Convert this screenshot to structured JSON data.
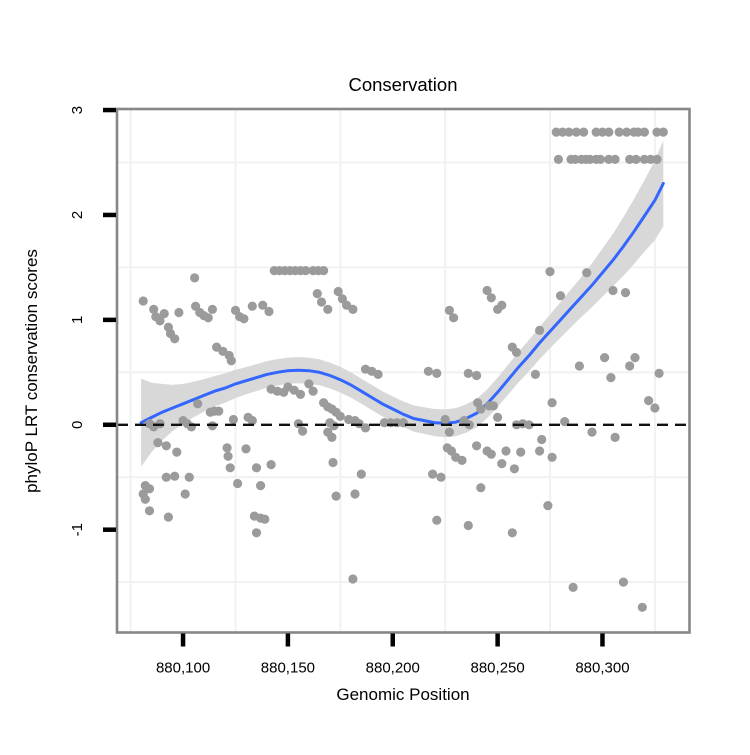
{
  "chart_data": {
    "type": "scatter",
    "title": "Conservation",
    "xlabel": "Genomic Position",
    "ylabel": "phyloP LRT conservation scores",
    "legend": "none",
    "x_ticks": {
      "values": [
        880100,
        880150,
        880200,
        880250,
        880300
      ],
      "labels": [
        "880,100",
        "880,150",
        "880,200",
        "880,250",
        "880,300"
      ]
    },
    "y_ticks": {
      "values": [
        -1,
        0,
        1,
        2,
        3
      ],
      "labels": [
        "-1",
        "0",
        "1",
        "2",
        "3"
      ]
    },
    "x_range": [
      880068.5,
      880341.5
    ],
    "y_range": [
      -1.98,
      3.01
    ],
    "grid": {
      "show": true,
      "x_lines": [
        880075,
        880125,
        880175,
        880225,
        880275,
        880325
      ],
      "y_lines": [
        -1.5,
        -0.5,
        0.5,
        1.5,
        2.5
      ]
    },
    "reference_line": {
      "y": 0,
      "style": "dashed"
    },
    "colors": {
      "point": "#9b9b9b",
      "smooth_line": "#3366ff",
      "ribbon": "#d8d8d8",
      "panel_border": "#878787",
      "grid_line": "#f1f1f1",
      "tick": "#000000",
      "reference": "#111111",
      "background": "#ffffff"
    },
    "smooth": {
      "x": [
        880080,
        880085,
        880090,
        880095,
        880100,
        880105,
        880110,
        880115,
        880120,
        880125,
        880130,
        880135,
        880140,
        880145,
        880150,
        880155,
        880160,
        880165,
        880170,
        880175,
        880180,
        880185,
        880190,
        880195,
        880200,
        880205,
        880210,
        880215,
        880220,
        880225,
        880230,
        880235,
        880240,
        880245,
        880250,
        880255,
        880260,
        880265,
        880270,
        880275,
        880280,
        880285,
        880290,
        880295,
        880300,
        880305,
        880310,
        880315,
        880320,
        880325,
        880329
      ],
      "y": [
        0.02,
        0.07,
        0.12,
        0.16,
        0.2,
        0.24,
        0.28,
        0.32,
        0.35,
        0.39,
        0.42,
        0.45,
        0.48,
        0.5,
        0.515,
        0.52,
        0.515,
        0.5,
        0.47,
        0.43,
        0.38,
        0.32,
        0.26,
        0.2,
        0.15,
        0.1,
        0.06,
        0.04,
        0.02,
        0.015,
        0.025,
        0.06,
        0.11,
        0.2,
        0.31,
        0.43,
        0.55,
        0.66,
        0.78,
        0.89,
        1.0,
        1.11,
        1.22,
        1.33,
        1.45,
        1.57,
        1.7,
        1.84,
        1.99,
        2.14,
        2.3
      ],
      "half_width": [
        0.42,
        0.33,
        0.27,
        0.22,
        0.19,
        0.17,
        0.155,
        0.145,
        0.14,
        0.135,
        0.13,
        0.128,
        0.127,
        0.126,
        0.125,
        0.125,
        0.125,
        0.124,
        0.123,
        0.122,
        0.12,
        0.12,
        0.12,
        0.12,
        0.12,
        0.122,
        0.125,
        0.127,
        0.13,
        0.132,
        0.134,
        0.135,
        0.136,
        0.137,
        0.14,
        0.142,
        0.145,
        0.15,
        0.155,
        0.16,
        0.17,
        0.18,
        0.19,
        0.21,
        0.23,
        0.25,
        0.28,
        0.31,
        0.34,
        0.38,
        0.41
      ]
    },
    "points": [
      [
        880278,
        2.79
      ],
      [
        880281,
        2.79
      ],
      [
        880284,
        2.79
      ],
      [
        880287.5,
        2.79
      ],
      [
        880291,
        2.79
      ],
      [
        880297,
        2.79
      ],
      [
        880300,
        2.79
      ],
      [
        880303,
        2.79
      ],
      [
        880308,
        2.79
      ],
      [
        880311.5,
        2.79
      ],
      [
        880315,
        2.79
      ],
      [
        880317,
        2.79
      ],
      [
        880320,
        2.79
      ],
      [
        880326,
        2.79
      ],
      [
        880329,
        2.79
      ],
      [
        880279,
        2.53
      ],
      [
        880285,
        2.53
      ],
      [
        880287,
        2.53
      ],
      [
        880290,
        2.53
      ],
      [
        880292,
        2.53
      ],
      [
        880294,
        2.53
      ],
      [
        880297,
        2.53
      ],
      [
        880299,
        2.53
      ],
      [
        880303,
        2.53
      ],
      [
        880306,
        2.53
      ],
      [
        880313,
        2.53
      ],
      [
        880316,
        2.53
      ],
      [
        880320,
        2.53
      ],
      [
        880323,
        2.53
      ],
      [
        880326,
        2.53
      ],
      [
        880143.5,
        1.47
      ],
      [
        880146,
        1.47
      ],
      [
        880148.5,
        1.47
      ],
      [
        880151,
        1.47
      ],
      [
        880153.5,
        1.47
      ],
      [
        880156,
        1.47
      ],
      [
        880158.5,
        1.47
      ],
      [
        880162,
        1.47
      ],
      [
        880164.5,
        1.47
      ],
      [
        880167,
        1.47
      ],
      [
        880105.5,
        1.4
      ],
      [
        880275,
        1.46
      ],
      [
        880292.5,
        1.45
      ],
      [
        880081,
        1.18
      ],
      [
        880086,
        1.1
      ],
      [
        880087,
        1.03
      ],
      [
        880089,
        0.99
      ],
      [
        880091,
        1.06
      ],
      [
        880098,
        1.07
      ],
      [
        880106,
        1.13
      ],
      [
        880108,
        1.07
      ],
      [
        880110,
        1.04
      ],
      [
        880112,
        1.02
      ],
      [
        880114,
        1.1
      ],
      [
        880125,
        1.09
      ],
      [
        880127,
        1.03
      ],
      [
        880129,
        1.01
      ],
      [
        880133,
        1.13
      ],
      [
        880138,
        1.14
      ],
      [
        880141,
        1.08
      ],
      [
        880093,
        0.93
      ],
      [
        880094,
        0.87
      ],
      [
        880096,
        0.82
      ],
      [
        880164,
        1.25
      ],
      [
        880166,
        1.17
      ],
      [
        880169,
        1.1
      ],
      [
        880174,
        1.27
      ],
      [
        880176,
        1.2
      ],
      [
        880178,
        1.14
      ],
      [
        880181,
        1.1
      ],
      [
        880227,
        1.09
      ],
      [
        880229,
        1.02
      ],
      [
        880245,
        1.28
      ],
      [
        880247,
        1.21
      ],
      [
        880250,
        1.1
      ],
      [
        880252,
        1.14
      ],
      [
        880280,
        1.23
      ],
      [
        880305,
        1.28
      ],
      [
        880311,
        1.26
      ],
      [
        880116,
        0.74
      ],
      [
        880119,
        0.7
      ],
      [
        880122,
        0.66
      ],
      [
        880123,
        0.61
      ],
      [
        880270,
        0.9
      ],
      [
        880257,
        0.74
      ],
      [
        880259,
        0.69
      ],
      [
        880301,
        0.64
      ],
      [
        880315.5,
        0.64
      ],
      [
        880187,
        0.53
      ],
      [
        880190,
        0.51
      ],
      [
        880193,
        0.48
      ],
      [
        880217,
        0.51
      ],
      [
        880221,
        0.49
      ],
      [
        880236,
        0.49
      ],
      [
        880240,
        0.47
      ],
      [
        880268,
        0.48
      ],
      [
        880289,
        0.56
      ],
      [
        880304,
        0.45
      ],
      [
        880313,
        0.56
      ],
      [
        880327,
        0.49
      ],
      [
        880142,
        0.34
      ],
      [
        880145,
        0.32
      ],
      [
        880148,
        0.31
      ],
      [
        880150,
        0.36
      ],
      [
        880153,
        0.33
      ],
      [
        880156,
        0.29
      ],
      [
        880160,
        0.39
      ],
      [
        880162,
        0.32
      ],
      [
        880167,
        0.21
      ],
      [
        880169,
        0.17
      ],
      [
        880276,
        0.21
      ],
      [
        880240.5,
        0.21
      ],
      [
        880242,
        0.15
      ],
      [
        880246,
        0.18
      ],
      [
        880322,
        0.23
      ],
      [
        880325,
        0.16
      ],
      [
        880084,
        0.01
      ],
      [
        880086,
        -0.02
      ],
      [
        880089,
        0.01
      ],
      [
        880100,
        0.04
      ],
      [
        880102,
        0.01
      ],
      [
        880104,
        -0.02
      ],
      [
        880107,
        0.2
      ],
      [
        880113,
        0.12
      ],
      [
        880115,
        0.13
      ],
      [
        880117,
        0.13
      ],
      [
        880114,
        -0.01
      ],
      [
        880124,
        0.05
      ],
      [
        880131,
        0.07
      ],
      [
        880133,
        0.04
      ],
      [
        880155,
        0.01
      ],
      [
        880157,
        -0.06
      ],
      [
        880171,
        0.15
      ],
      [
        880173,
        0.12
      ],
      [
        880175,
        0.08
      ],
      [
        880179,
        0.05
      ],
      [
        880170,
        0.02
      ],
      [
        880172,
        -0.01
      ],
      [
        880182,
        0.04
      ],
      [
        880184,
        0.01
      ],
      [
        880187,
        -0.03
      ],
      [
        880196,
        0.02
      ],
      [
        880199,
        0.02
      ],
      [
        880202,
        0.02
      ],
      [
        880205,
        0.02
      ],
      [
        880225,
        0.05
      ],
      [
        880227,
        -0.07
      ],
      [
        880234,
        0.04
      ],
      [
        880236.5,
        0.0
      ],
      [
        880248,
        0.18
      ],
      [
        880250,
        0.07
      ],
      [
        880259,
        0.0
      ],
      [
        880262,
        0.01
      ],
      [
        880265,
        0.0
      ],
      [
        880282,
        0.03
      ],
      [
        880295,
        -0.07
      ],
      [
        880306,
        -0.12
      ],
      [
        880169,
        -0.07
      ],
      [
        880171,
        -0.12
      ],
      [
        880088,
        -0.17
      ],
      [
        880092,
        -0.2
      ],
      [
        880097,
        -0.26
      ],
      [
        880121,
        -0.22
      ],
      [
        880121.5,
        -0.3
      ],
      [
        880122.5,
        -0.41
      ],
      [
        880130,
        -0.23
      ],
      [
        880135,
        -0.41
      ],
      [
        880142,
        -0.38
      ],
      [
        880171.5,
        -0.36
      ],
      [
        880219,
        -0.47
      ],
      [
        880223,
        -0.5
      ],
      [
        880226,
        -0.22
      ],
      [
        880228,
        -0.25
      ],
      [
        880230,
        -0.31
      ],
      [
        880233,
        -0.34
      ],
      [
        880240,
        -0.2
      ],
      [
        880245,
        -0.25
      ],
      [
        880247,
        -0.28
      ],
      [
        880254,
        -0.25
      ],
      [
        880261,
        -0.26
      ],
      [
        880252,
        -0.37
      ],
      [
        880258,
        -0.42
      ],
      [
        880271,
        -0.14
      ],
      [
        880270,
        -0.25
      ],
      [
        880276,
        -0.31
      ],
      [
        880092,
        -0.5
      ],
      [
        880096,
        -0.49
      ],
      [
        880103,
        -0.5
      ],
      [
        880082,
        -0.58
      ],
      [
        880084,
        -0.61
      ],
      [
        880081,
        -0.66
      ],
      [
        880082,
        -0.71
      ],
      [
        880101,
        -0.66
      ],
      [
        880126,
        -0.56
      ],
      [
        880137,
        -0.58
      ],
      [
        880185,
        -0.47
      ],
      [
        880173,
        -0.68
      ],
      [
        880182,
        -0.66
      ],
      [
        880242,
        -0.6
      ],
      [
        880274,
        -0.77
      ],
      [
        880084,
        -0.82
      ],
      [
        880093,
        -0.88
      ],
      [
        880134,
        -0.87
      ],
      [
        880137,
        -0.89
      ],
      [
        880139,
        -0.9
      ],
      [
        880135,
        -1.03
      ],
      [
        880221,
        -0.91
      ],
      [
        880236,
        -0.96
      ],
      [
        880257,
        -1.03
      ],
      [
        880181,
        -1.47
      ],
      [
        880286,
        -1.55
      ],
      [
        880310,
        -1.5
      ],
      [
        880319,
        -1.74
      ]
    ]
  }
}
